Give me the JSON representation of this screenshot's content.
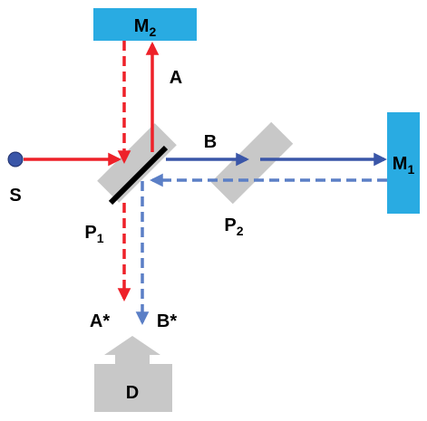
{
  "colors": {
    "red_beam": "#ee2129",
    "blue_beam": "#3a56a8",
    "blue_beam_return": "#5b7fc6",
    "mirror_fill": "#29abe2",
    "plate_fill": "#c8c8c8",
    "detector_fill": "#c8c8c8",
    "source_fill": "#3a56a8",
    "text": "#000000"
  },
  "mirror_m2": {
    "label": "M",
    "sub": "2"
  },
  "mirror_m1": {
    "label": "M",
    "sub": "1"
  },
  "plate_p1": {
    "label": "P",
    "sub": "1"
  },
  "plate_p2": {
    "label": "P",
    "sub": "2"
  },
  "source": {
    "label": "S"
  },
  "detector": {
    "label": "D"
  },
  "beam_a": {
    "label": "A"
  },
  "beam_b": {
    "label": "B"
  },
  "output_a": {
    "label": "A*"
  },
  "output_b": {
    "label": "B*"
  }
}
